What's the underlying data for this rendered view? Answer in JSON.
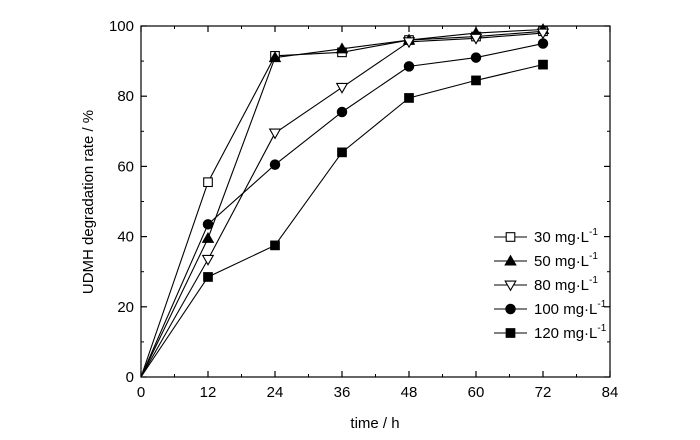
{
  "chart_data": {
    "type": "line",
    "title": "",
    "xlabel": "time / h",
    "ylabel": "UDMH degradation rate / %",
    "xlim": [
      0,
      84
    ],
    "ylim": [
      0,
      100
    ],
    "xticks": [
      0,
      12,
      24,
      36,
      48,
      60,
      72,
      84
    ],
    "yticks": [
      0,
      20,
      40,
      60,
      80,
      100
    ],
    "grid": false,
    "legend_position": "right",
    "unit_base": "mg·L",
    "unit_exp": "-1",
    "series": [
      {
        "name": "30 mg·L-1",
        "value_label": "30",
        "marker": "square-open",
        "x": [
          0,
          12,
          24,
          36,
          48,
          60,
          72
        ],
        "y": [
          0,
          55.5,
          91.5,
          92.5,
          96.0,
          97.0,
          98.5
        ]
      },
      {
        "name": "50 mg·L-1",
        "value_label": "50",
        "marker": "triangle-up-filled",
        "x": [
          0,
          12,
          24,
          36,
          48,
          60,
          72
        ],
        "y": [
          0,
          39.5,
          91.0,
          93.5,
          96.0,
          98.0,
          99.0
        ]
      },
      {
        "name": "80 mg·L-1",
        "value_label": "80",
        "marker": "triangle-down-open",
        "x": [
          0,
          12,
          24,
          36,
          48,
          60,
          72
        ],
        "y": [
          0,
          33.5,
          69.5,
          82.5,
          95.5,
          96.5,
          98.0
        ]
      },
      {
        "name": "100 mg·L-1",
        "value_label": "100",
        "marker": "circle-filled",
        "x": [
          0,
          12,
          24,
          36,
          48,
          60,
          72
        ],
        "y": [
          0,
          43.5,
          60.5,
          75.5,
          88.5,
          91.0,
          95.0
        ]
      },
      {
        "name": "120 mg·L-1",
        "value_label": "120",
        "marker": "square-filled",
        "x": [
          0,
          12,
          24,
          36,
          48,
          60,
          72
        ],
        "y": [
          0,
          28.5,
          37.5,
          64.0,
          79.5,
          84.5,
          89.0
        ]
      }
    ]
  }
}
